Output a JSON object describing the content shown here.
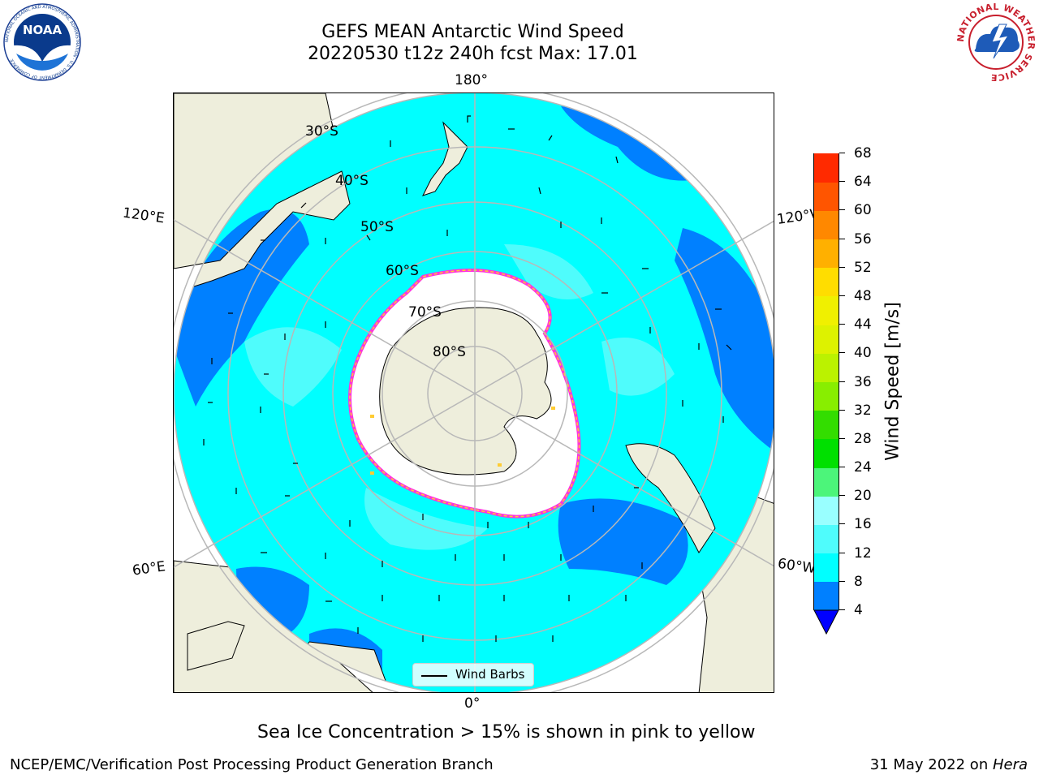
{
  "title": {
    "line1": "GEFS MEAN Antarctic Wind Speed",
    "line2": "20220530 t12z 240h fcst   Max: 17.01"
  },
  "logos": {
    "left": "NOAA",
    "left_ring": "NATIONAL OCEANIC AND ATMOSPHERIC ADMINISTRATION · U.S. DEPARTMENT OF COMMERCE",
    "right_ring": "NATIONAL WEATHER SERVICE"
  },
  "map": {
    "projection": "south polar stereographic",
    "longitude_labels": {
      "top": "180°",
      "bottom": "0°",
      "upper_left": "120°E",
      "upper_right": "120°W",
      "lower_left": "60°E",
      "lower_right": "60°W"
    },
    "latitude_labels": [
      "30°S",
      "40°S",
      "50°S",
      "60°S",
      "70°S",
      "80°S"
    ],
    "colors": {
      "land": "#eeeedc",
      "ocean_fast": "#00ffff",
      "ocean_slow": "#0080ff",
      "ocean_mid": "#4ffcfc",
      "ice": "#ffffff",
      "ice_edge_pink": "#ff33dd",
      "ice_edge_yellow": "#ffcc33",
      "grid": "#b8b8b8"
    }
  },
  "legend": {
    "label": "Wind Barbs"
  },
  "colorbar": {
    "label": "Wind Speed [m/s]",
    "ticks": [
      "4",
      "8",
      "12",
      "16",
      "20",
      "24",
      "28",
      "32",
      "36",
      "40",
      "44",
      "48",
      "52",
      "56",
      "60",
      "64",
      "68"
    ],
    "colors": [
      "#0080ff",
      "#00ffff",
      "#4ffcfc",
      "#99ffff",
      "#4cf57a",
      "#00e000",
      "#33dd00",
      "#88ee00",
      "#bbf200",
      "#ddf200",
      "#f0f000",
      "#ffdd00",
      "#ffb000",
      "#ff8800",
      "#ff5500",
      "#ff2a00",
      "#ff0000"
    ],
    "extend_color": "#0000ff"
  },
  "sea_ice_note": "Sea Ice Concentration > 15% is shown in pink to yellow",
  "footer": {
    "left": "NCEP/EMC/Verification Post Processing Product Generation Branch",
    "date": "31 May 2022 on ",
    "machine": "Hera"
  }
}
